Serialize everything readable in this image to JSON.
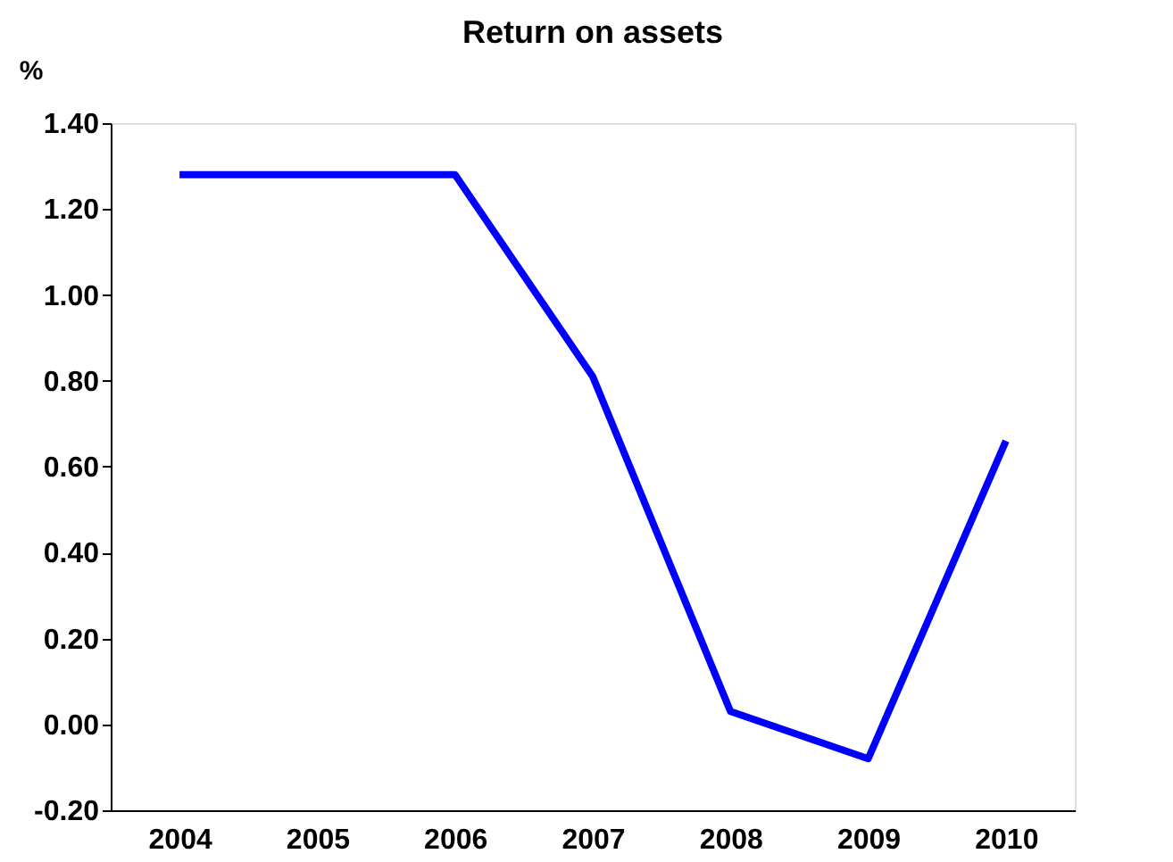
{
  "chart_data": {
    "type": "line",
    "title": "Return on assets",
    "ylabel": "%",
    "categories": [
      "2004",
      "2005",
      "2006",
      "2007",
      "2008",
      "2009",
      "2010"
    ],
    "series": [
      {
        "color": "#0000ff",
        "values": [
          1.28,
          1.28,
          1.28,
          0.81,
          0.03,
          -0.08,
          0.66
        ]
      }
    ],
    "ylim": [
      -0.2,
      1.4
    ],
    "yticks": [
      {
        "value": -0.2,
        "label": "-0.20"
      },
      {
        "value": 0,
        "label": "0.00"
      },
      {
        "value": 0.2,
        "label": "0.20"
      },
      {
        "value": 0.4,
        "label": "0.40"
      },
      {
        "value": 0.6,
        "label": "0.60"
      },
      {
        "value": 0.8,
        "label": "0.80"
      },
      {
        "value": 1.0,
        "label": "1.00"
      },
      {
        "value": 1.2,
        "label": "1.20"
      },
      {
        "value": 1.4,
        "label": "1.40"
      }
    ],
    "grid": false,
    "legend": false,
    "marker": "none",
    "line_style": "solid"
  }
}
